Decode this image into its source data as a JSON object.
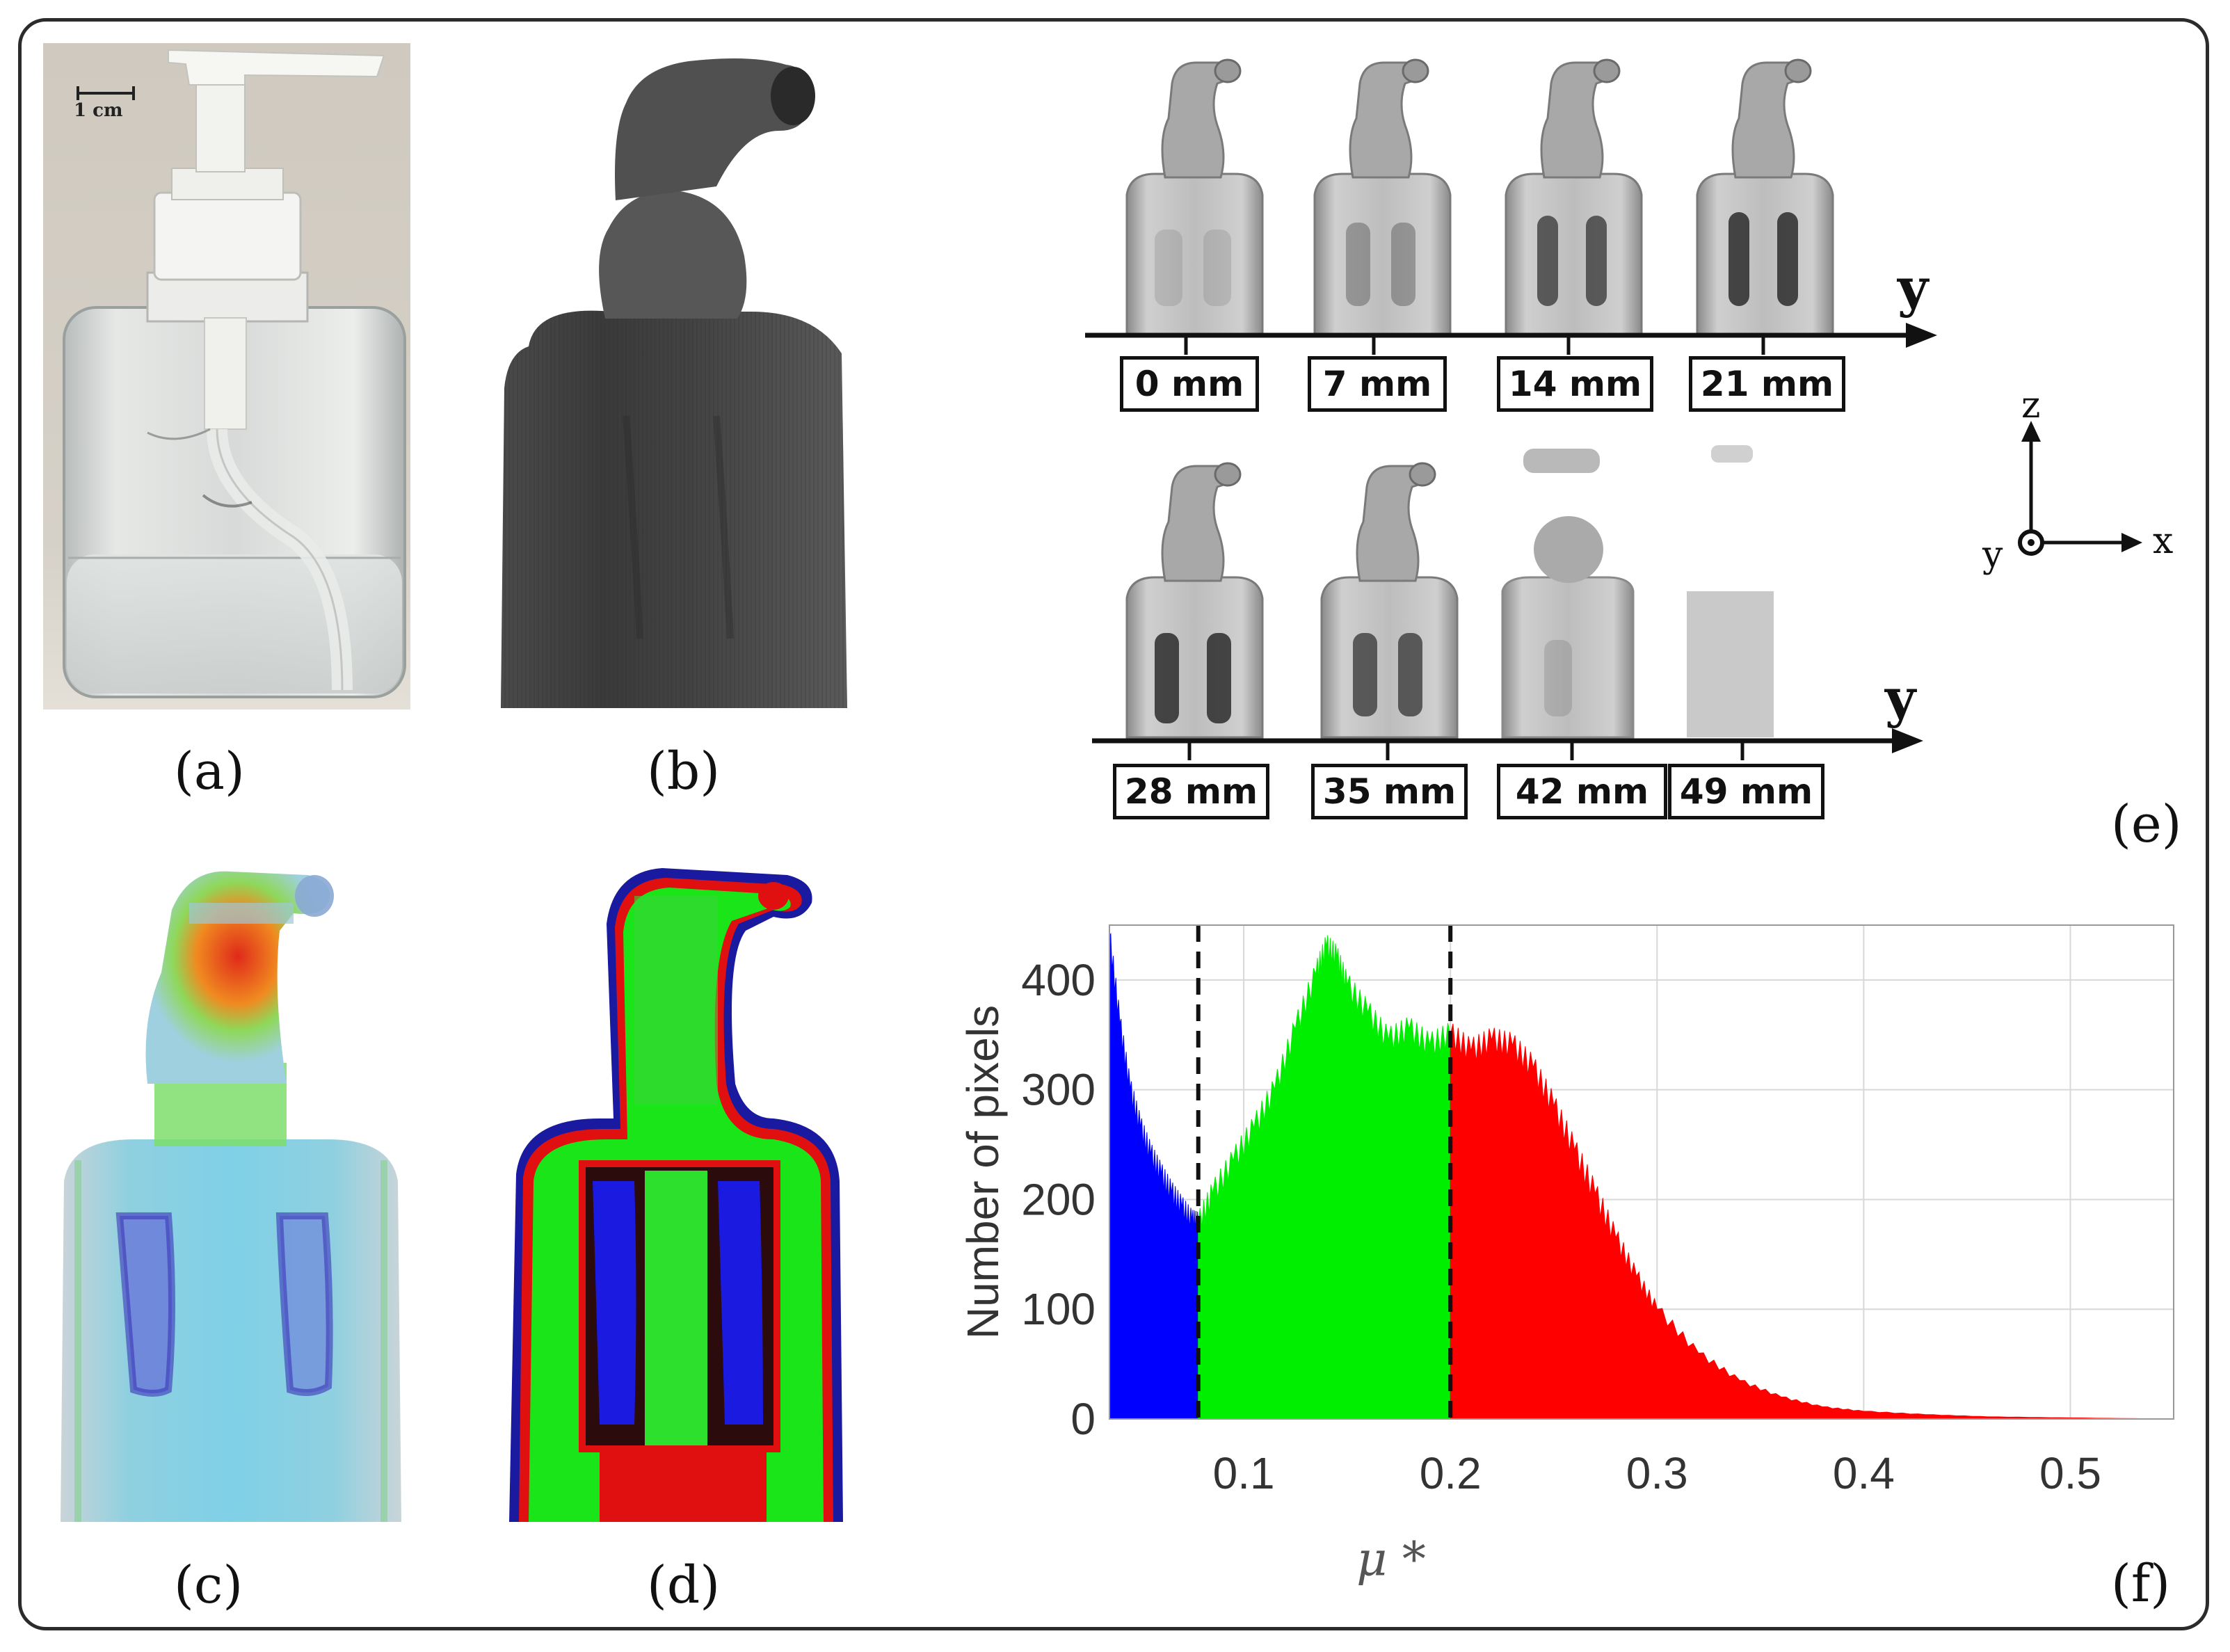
{
  "panels": {
    "a": {
      "label": "(a)",
      "scale_bar": "1 cm"
    },
    "b": {
      "label": "(b)"
    },
    "c": {
      "label": "(c)"
    },
    "d": {
      "label": "(d)"
    },
    "e": {
      "label": "(e)",
      "axis_letter": "y",
      "row1_positions": [
        "0 mm",
        "7 mm",
        "14 mm",
        "21 mm"
      ],
      "row2_positions": [
        "28 mm",
        "35 mm",
        "42 mm",
        "49 mm"
      ],
      "orientation": {
        "z": "z",
        "y": "y",
        "x": "x"
      }
    },
    "f": {
      "label": "(f)"
    }
  },
  "chart_data": {
    "type": "area",
    "xlabel": "μ *",
    "ylabel": "Number of pixels",
    "xlim": [
      0.035,
      0.55
    ],
    "ylim": [
      0,
      450
    ],
    "xticks": [
      0.1,
      0.2,
      0.3,
      0.4,
      0.5
    ],
    "yticks": [
      0,
      100,
      200,
      300,
      400
    ],
    "grid": true,
    "thresholds": [
      0.078,
      0.2
    ],
    "series": [
      {
        "color": "#0000ff",
        "x": [
          0.035,
          0.04,
          0.045,
          0.05,
          0.055,
          0.06,
          0.065,
          0.07,
          0.075,
          0.078
        ],
        "values": [
          440,
          360,
          300,
          265,
          240,
          222,
          205,
          192,
          180,
          178
        ]
      },
      {
        "color": "#00ee00",
        "x": [
          0.078,
          0.085,
          0.095,
          0.105,
          0.115,
          0.125,
          0.135,
          0.14,
          0.145,
          0.15,
          0.16,
          0.17,
          0.18,
          0.19,
          0.2
        ],
        "values": [
          178,
          205,
          235,
          265,
          300,
          355,
          405,
          430,
          420,
          395,
          370,
          345,
          355,
          340,
          350
        ]
      },
      {
        "color": "#ff0000",
        "x": [
          0.2,
          0.21,
          0.22,
          0.23,
          0.24,
          0.25,
          0.26,
          0.27,
          0.28,
          0.29,
          0.3,
          0.32,
          0.34,
          0.36,
          0.38,
          0.4,
          0.43,
          0.46,
          0.5,
          0.55
        ],
        "values": [
          350,
          335,
          345,
          340,
          320,
          285,
          245,
          205,
          165,
          130,
          100,
          60,
          35,
          20,
          11,
          7,
          4,
          2,
          1,
          0
        ]
      }
    ]
  }
}
